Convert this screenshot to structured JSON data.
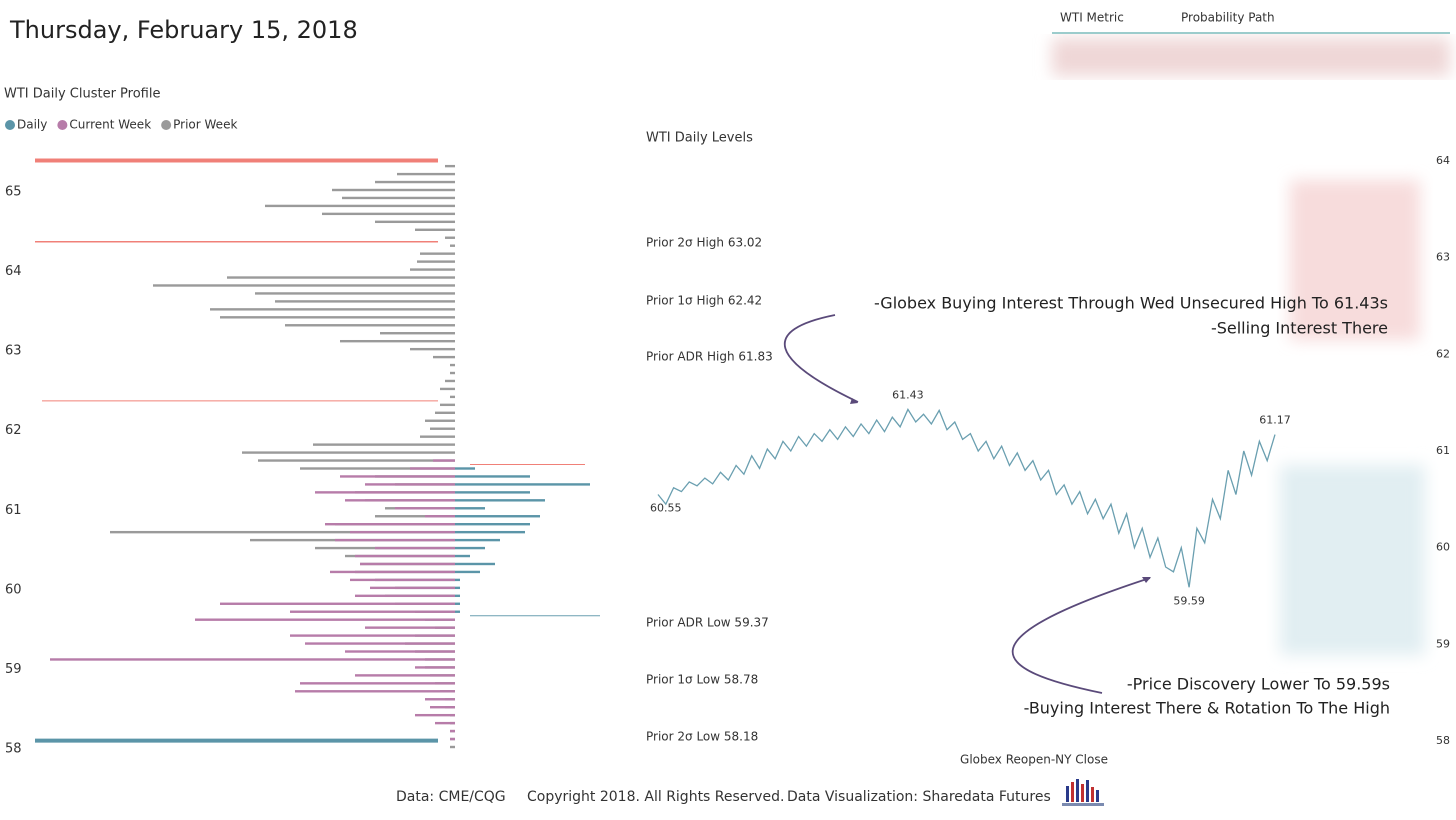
{
  "header": {
    "title": "Thursday, February 15, 2018"
  },
  "table": {
    "columns": [
      "WTI Metric",
      "Probability Path"
    ]
  },
  "footer": {
    "source": "Data: CME/CQG",
    "copyright": "Copyright 2018. All Rights Reserved.",
    "credit": "Data Visualization: Sharedata Futures"
  },
  "chart_data": [
    {
      "type": "profile",
      "title": "WTI Daily Cluster Profile",
      "categories": [
        65.3,
        65.2,
        65.1,
        65.0,
        64.9,
        64.8,
        64.7,
        64.6,
        64.5,
        64.4,
        64.3,
        64.2,
        64.1,
        64.0,
        63.9,
        63.8,
        63.7,
        63.6,
        63.5,
        63.4,
        63.3,
        63.2,
        63.1,
        63.0,
        62.9,
        62.8,
        62.7,
        62.6,
        62.5,
        62.4,
        62.3,
        62.2,
        62.1,
        62.0,
        61.9,
        61.8,
        61.7,
        61.6,
        61.5,
        61.4,
        61.3,
        61.2,
        61.1,
        61.0,
        60.9,
        60.8,
        60.7,
        60.6,
        60.5,
        60.4,
        60.3,
        60.2,
        60.1,
        60.0,
        59.9,
        59.8,
        59.7,
        59.6,
        59.5,
        59.4,
        59.3,
        59.2,
        59.1,
        59.0,
        58.9,
        58.8,
        58.7,
        58.6,
        58.5,
        58.4,
        58.3,
        58.2,
        58.1,
        58.0
      ],
      "series": [
        {
          "name": "Prior Week",
          "color": "#9a9a9a",
          "direction": "left",
          "values": [
            10,
            58,
            80,
            123,
            113,
            190,
            133,
            80,
            40,
            10,
            5,
            35,
            38,
            45,
            228,
            302,
            200,
            180,
            245,
            235,
            170,
            75,
            115,
            45,
            22,
            5,
            5,
            10,
            15,
            5,
            15,
            20,
            30,
            25,
            35,
            142,
            213,
            197,
            155,
            80,
            60,
            100,
            90,
            70,
            80,
            120,
            345,
            205,
            140,
            110,
            95,
            100,
            80,
            60,
            70,
            60,
            40,
            30,
            20,
            40,
            50,
            40,
            30,
            30,
            25,
            20,
            15,
            10,
            10,
            5,
            5,
            5,
            5,
            5
          ]
        },
        {
          "name": "Current Week",
          "color": "#b77ca9",
          "direction": "left",
          "values": [
            null,
            null,
            null,
            null,
            null,
            null,
            null,
            null,
            null,
            null,
            null,
            null,
            null,
            null,
            null,
            null,
            null,
            null,
            null,
            null,
            null,
            null,
            null,
            null,
            null,
            null,
            null,
            null,
            null,
            null,
            null,
            null,
            null,
            null,
            null,
            null,
            null,
            22,
            45,
            115,
            90,
            140,
            110,
            60,
            30,
            130,
            105,
            120,
            80,
            100,
            95,
            125,
            105,
            85,
            100,
            235,
            165,
            260,
            90,
            165,
            150,
            110,
            405,
            40,
            100,
            155,
            160,
            30,
            25,
            40,
            20,
            5,
            5,
            null
          ]
        },
        {
          "name": "Daily",
          "color": "#5b95a8",
          "direction": "right",
          "values": [
            null,
            null,
            null,
            null,
            null,
            null,
            null,
            null,
            null,
            null,
            null,
            null,
            null,
            null,
            null,
            null,
            null,
            null,
            null,
            null,
            null,
            null,
            null,
            null,
            null,
            null,
            null,
            null,
            null,
            null,
            null,
            null,
            null,
            null,
            null,
            null,
            null,
            null,
            20,
            75,
            135,
            75,
            90,
            30,
            85,
            75,
            70,
            45,
            30,
            15,
            40,
            25,
            5,
            5,
            5,
            5,
            5,
            null,
            null,
            null,
            null,
            null,
            null,
            null,
            null,
            null,
            null,
            null,
            null,
            null,
            null,
            null,
            null,
            null
          ]
        }
      ],
      "ref_lines": [
        {
          "value": 65.37,
          "color": "#f08078",
          "length": 403,
          "width": 4,
          "side": "left"
        },
        {
          "value": 64.35,
          "color": "#f08078",
          "length": 403,
          "width": 1.5,
          "side": "left"
        },
        {
          "value": 62.35,
          "color": "#f08078",
          "length": 396,
          "width": 1,
          "side": "left"
        },
        {
          "value": 61.55,
          "color": "#f08078",
          "length": 115,
          "width": 1,
          "side": "right"
        },
        {
          "value": 59.65,
          "color": "#6a9fb0",
          "length": 130,
          "width": 1,
          "side": "right"
        },
        {
          "value": 58.08,
          "color": "#5b95a8",
          "length": 403,
          "width": 4,
          "side": "left"
        }
      ],
      "xlim": [
        0,
        425
      ],
      "ylim": [
        58,
        65
      ],
      "yticks": [
        58,
        59,
        60,
        61,
        62,
        63,
        64,
        65
      ]
    },
    {
      "type": "line",
      "title": "WTI Daily Levels",
      "xlabel": "Globex Reopen-NY Close",
      "color": "#6a9fb0",
      "values": [
        60.55,
        60.45,
        60.62,
        60.58,
        60.68,
        60.64,
        60.72,
        60.66,
        60.78,
        60.7,
        60.85,
        60.76,
        60.95,
        60.82,
        61.02,
        60.92,
        61.1,
        61.0,
        61.15,
        61.05,
        61.18,
        61.1,
        61.22,
        61.12,
        61.25,
        61.15,
        61.28,
        61.18,
        61.32,
        61.2,
        61.35,
        61.25,
        61.43,
        61.3,
        61.38,
        61.28,
        61.42,
        61.22,
        61.3,
        61.12,
        61.18,
        61.0,
        61.1,
        60.92,
        61.05,
        60.85,
        60.98,
        60.8,
        60.9,
        60.7,
        60.8,
        60.55,
        60.65,
        60.45,
        60.58,
        60.35,
        60.5,
        60.3,
        60.45,
        60.15,
        60.35,
        60.0,
        60.2,
        59.9,
        60.1,
        59.8,
        59.75,
        60.0,
        59.59,
        60.2,
        60.05,
        60.5,
        60.3,
        60.8,
        60.55,
        61.0,
        60.75,
        61.1,
        60.9,
        61.17
      ],
      "levels": [
        {
          "label": "Prior 2σ High 63.02",
          "color": "#b04a4a"
        },
        {
          "label": "Prior 1σ High 62.42",
          "color": "#b04a4a"
        },
        {
          "label": "Prior ADR High 61.83",
          "color": "#b04a4a"
        },
        {
          "label": "Prior ADR Low 59.37",
          "color": "#5b95a8"
        },
        {
          "label": "Prior 1σ Low 58.78",
          "color": "#5b95a8"
        },
        {
          "label": "Prior 2σ Low 58.18",
          "color": "#5b95a8"
        }
      ],
      "annotations": [
        "-Globex Buying Interest Through Wed Unsecured High To 61.43s",
        "-Selling Interest There",
        "-Price Discovery Lower To 59.59s",
        "-Buying Interest  There & Rotation To The High"
      ],
      "ylim": [
        58,
        64
      ],
      "yticks": [
        58,
        59,
        60,
        61,
        62,
        63,
        64
      ]
    }
  ]
}
